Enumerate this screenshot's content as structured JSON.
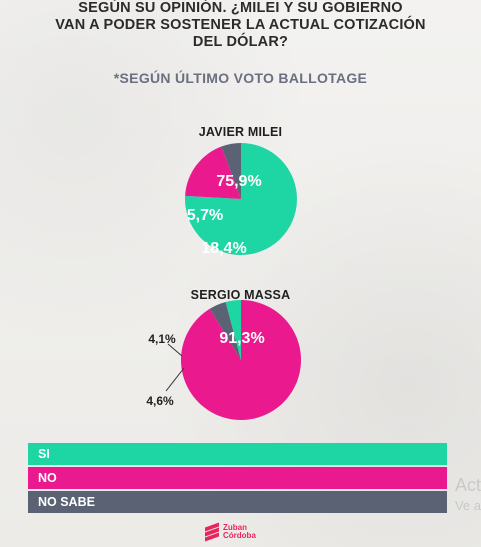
{
  "title_lines": [
    "SEGÚN SU OPINIÓN. ¿MILEI Y SU GOBIERNO",
    "VAN A PODER SOSTENER LA ACTUAL COTIZACIÓN",
    "DEL DÓLAR?"
  ],
  "subtitle": "*SEGÚN ÚLTIMO VOTO BALLOTAGE",
  "colors": {
    "si": "#1ed6a4",
    "no": "#ea1a8e",
    "no_sabe": "#5b6274"
  },
  "chart_data": [
    {
      "type": "pie",
      "title": "JAVIER MILEI",
      "categories": [
        "SI",
        "NO",
        "NO SABE"
      ],
      "values": [
        75.9,
        18.4,
        5.7
      ],
      "labels": [
        "75,9%",
        "18,4%",
        "5,7%"
      ]
    },
    {
      "type": "pie",
      "title": "SERGIO MASSA",
      "categories": [
        "SI",
        "NO",
        "NO SABE"
      ],
      "values": [
        4.1,
        91.3,
        4.6
      ],
      "labels": [
        "4,1%",
        "91,3%",
        "4,6%"
      ]
    }
  ],
  "legend": [
    {
      "label": "SI",
      "color_key": "si"
    },
    {
      "label": "NO",
      "color_key": "no"
    },
    {
      "label": "NO SABE",
      "color_key": "no_sabe"
    }
  ],
  "ghost_text": [
    "Act",
    "Ve a"
  ],
  "brand": {
    "line1": "Zuban",
    "line2": "Córdoba"
  }
}
